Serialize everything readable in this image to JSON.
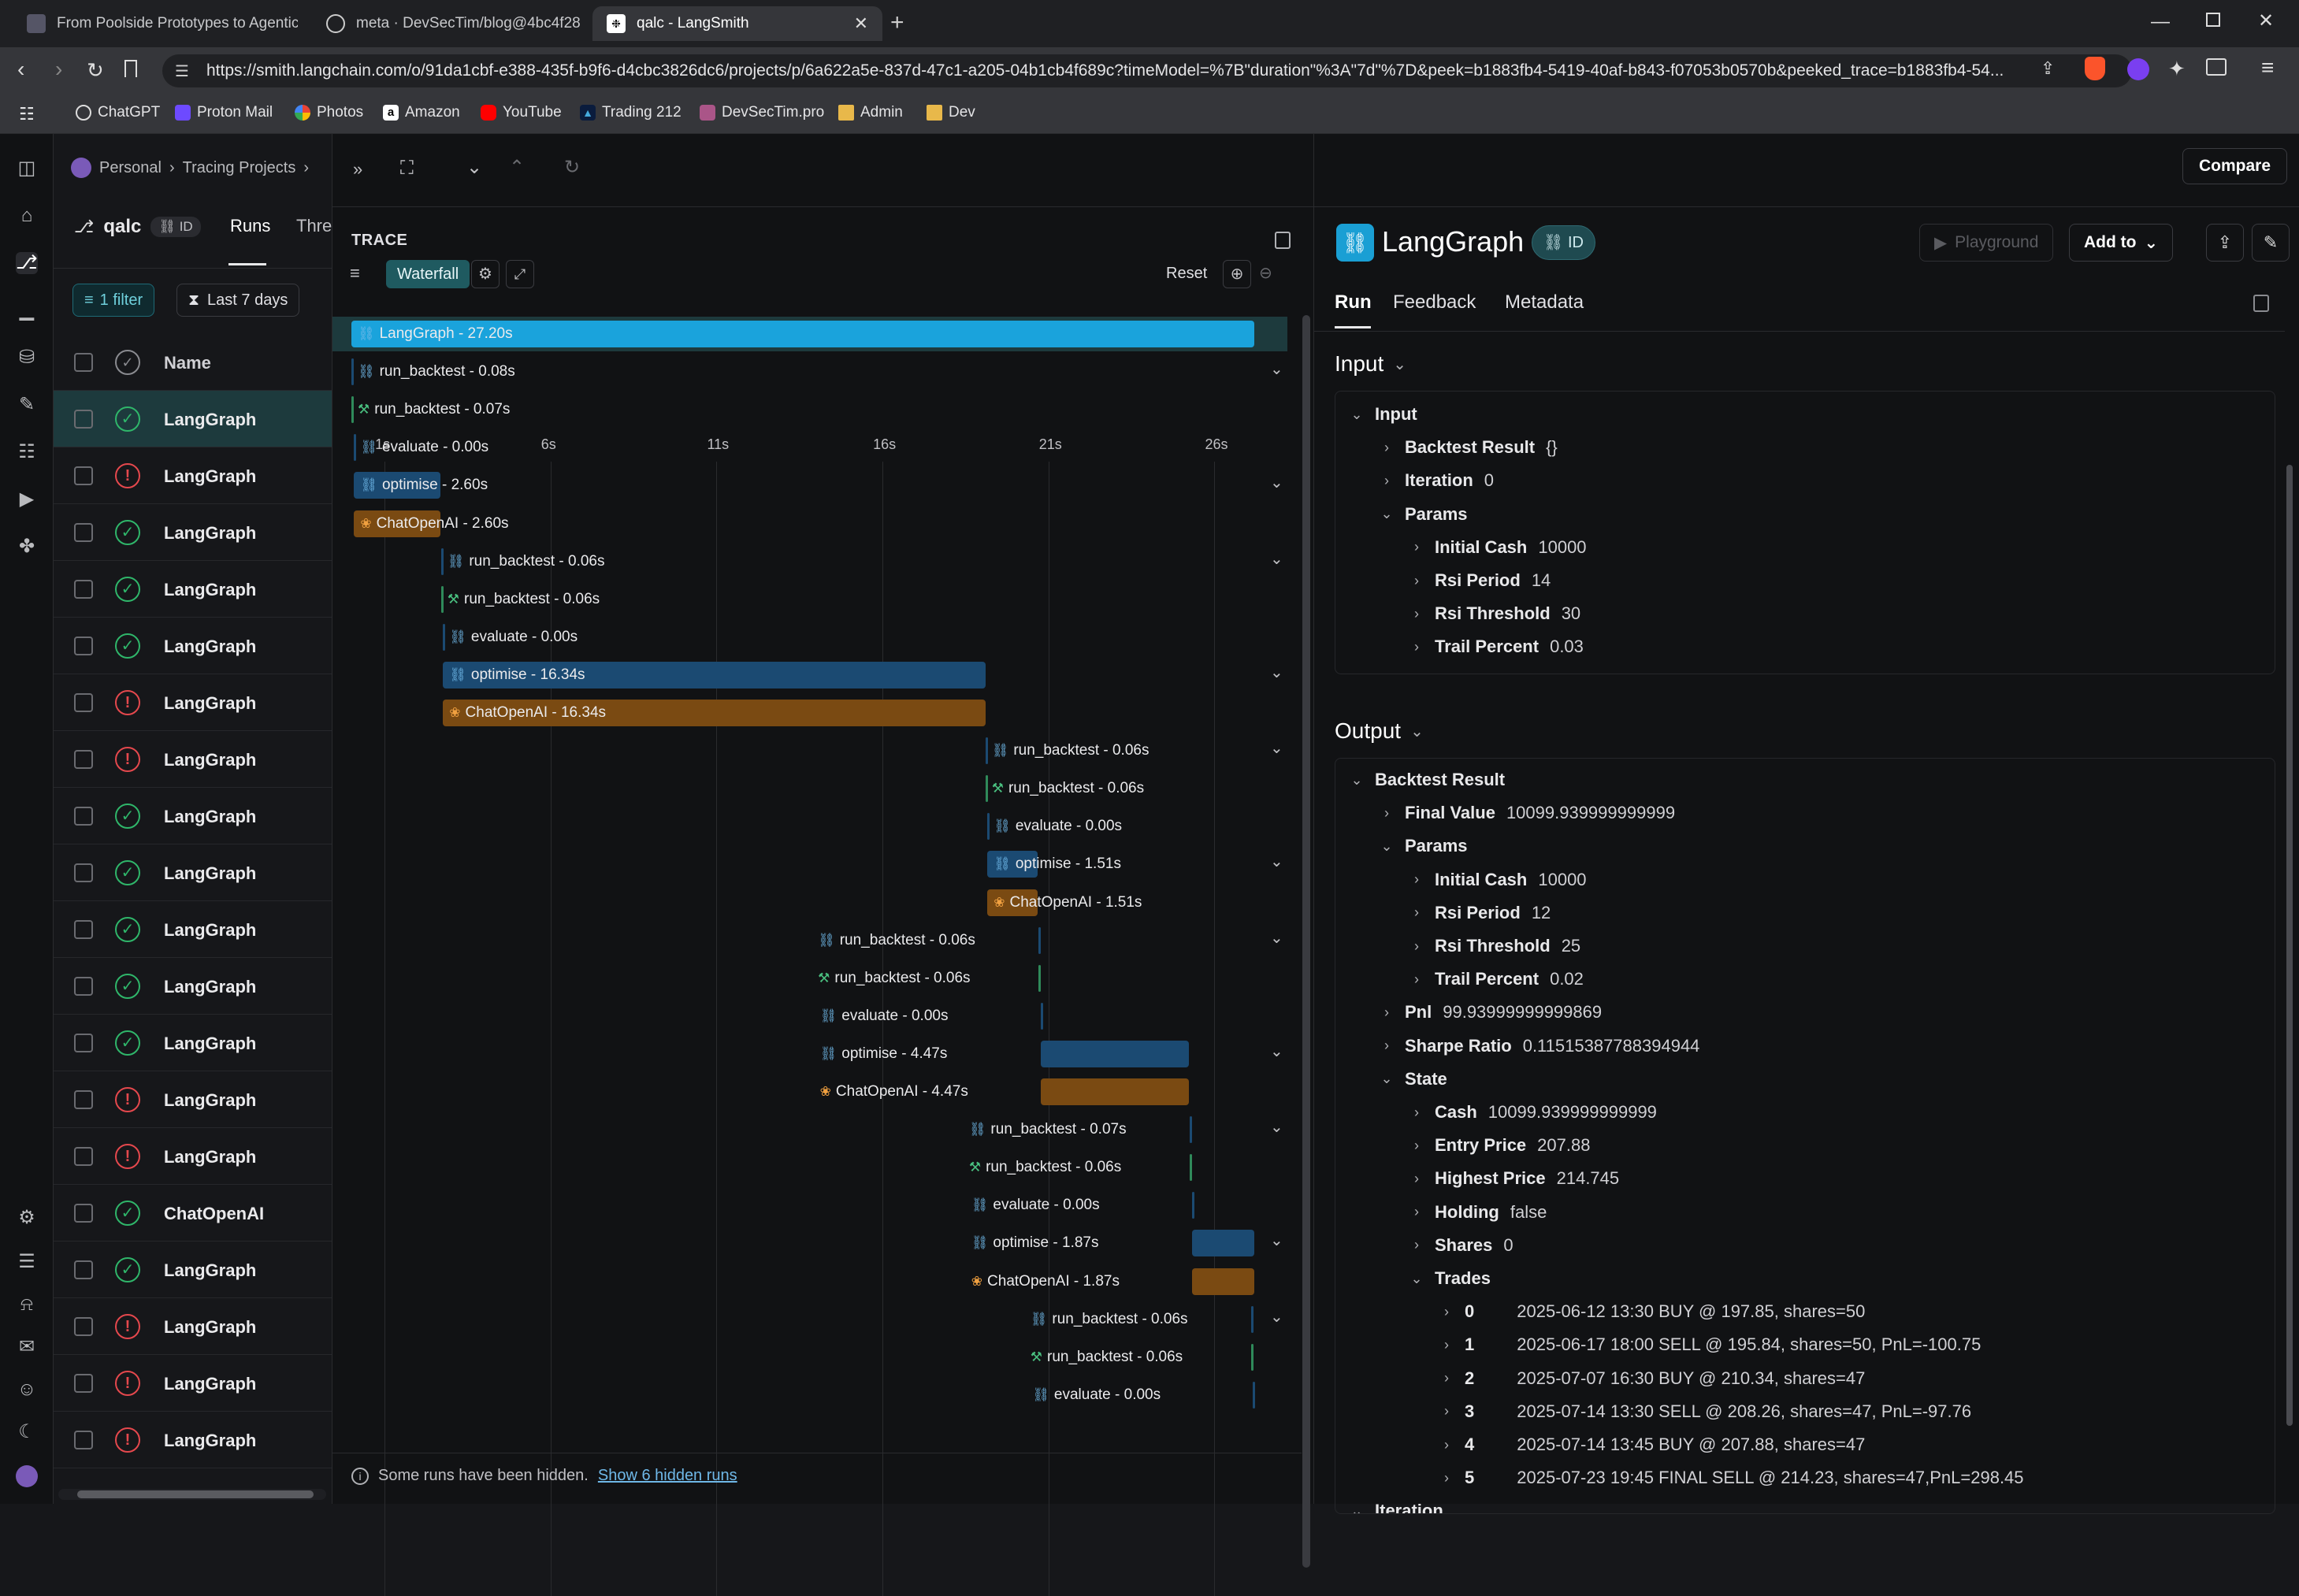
{
  "browser": {
    "tabs": [
      {
        "title": "From Poolside Prototypes to Agentic"
      },
      {
        "title": "meta · DevSecTim/blog@4bc4f28"
      },
      {
        "title": "qalc - LangSmith"
      }
    ],
    "url": "https://smith.langchain.com/o/91da1cbf-e388-435f-b9f6-d4cbc3826dc6/projects/p/6a622a5e-837d-47c1-a205-04b1cb4f689c?timeModel=%7B\"duration\"%3A\"7d\"%7D&peek=b1883fb4-5419-40af-b843-f07053b0570b&peeked_trace=b1883fb4-54...",
    "bookmarks": [
      "ChatGPT",
      "Proton Mail",
      "Photos",
      "Amazon",
      "YouTube",
      "Trading 212",
      "DevSecTim.pro",
      "Admin",
      "Dev"
    ]
  },
  "header": {
    "breadcrumb": [
      "Personal",
      "Tracing Projects"
    ],
    "compare_label": "Compare"
  },
  "project": {
    "name": "qalc",
    "id_badge": "ID",
    "tabs": [
      "Runs",
      "Threa"
    ],
    "filter_label": "1 filter",
    "time_label": "Last 7 days",
    "name_column": "Name",
    "runs": [
      {
        "name": "LangGraph",
        "status": "success"
      },
      {
        "name": "LangGraph",
        "status": "error"
      },
      {
        "name": "LangGraph",
        "status": "success"
      },
      {
        "name": "LangGraph",
        "status": "success"
      },
      {
        "name": "LangGraph",
        "status": "success"
      },
      {
        "name": "LangGraph",
        "status": "error"
      },
      {
        "name": "LangGraph",
        "status": "error"
      },
      {
        "name": "LangGraph",
        "status": "success"
      },
      {
        "name": "LangGraph",
        "status": "success"
      },
      {
        "name": "LangGraph",
        "status": "success"
      },
      {
        "name": "LangGraph",
        "status": "success"
      },
      {
        "name": "LangGraph",
        "status": "success"
      },
      {
        "name": "LangGraph",
        "status": "error"
      },
      {
        "name": "LangGraph",
        "status": "error"
      },
      {
        "name": "ChatOpenAI",
        "status": "success"
      },
      {
        "name": "LangGraph",
        "status": "success"
      },
      {
        "name": "LangGraph",
        "status": "error"
      },
      {
        "name": "LangGraph",
        "status": "error"
      },
      {
        "name": "LangGraph",
        "status": "error"
      }
    ]
  },
  "trace": {
    "heading": "TRACE",
    "waterfall_label": "Waterfall",
    "reset_label": "Reset",
    "axis_ticks": [
      "1s",
      "6s",
      "11s",
      "16s",
      "21s",
      "26s"
    ],
    "hidden_note": "Some runs have been hidden.",
    "hidden_link": "Show 6 hidden runs",
    "rows": [
      {
        "label": "LangGraph - 27.20s",
        "kind": "chain",
        "start": 0,
        "duration": 27.2,
        "expand": false
      },
      {
        "label": "run_backtest - 0.08s",
        "kind": "chain",
        "start": 0,
        "duration": 0.08,
        "expand": true
      },
      {
        "label": "run_backtest - 0.07s",
        "kind": "tool",
        "start": 0,
        "duration": 0.07,
        "expand": false
      },
      {
        "label": "evaluate - 0.00s",
        "kind": "chain",
        "start": 0.08,
        "duration": 0.0,
        "expand": false
      },
      {
        "label": "optimise - 2.60s",
        "kind": "chain",
        "start": 0.08,
        "duration": 2.6,
        "expand": true
      },
      {
        "label": "ChatOpenAI - 2.60s",
        "kind": "llm",
        "start": 0.08,
        "duration": 2.6,
        "expand": false
      },
      {
        "label": "run_backtest - 0.06s",
        "kind": "chain",
        "start": 2.7,
        "duration": 0.06,
        "expand": true
      },
      {
        "label": "run_backtest - 0.06s",
        "kind": "tool",
        "start": 2.7,
        "duration": 0.06,
        "expand": false
      },
      {
        "label": "evaluate - 0.00s",
        "kind": "chain",
        "start": 2.76,
        "duration": 0.0,
        "expand": false
      },
      {
        "label": "optimise - 16.34s",
        "kind": "chain",
        "start": 2.76,
        "duration": 16.34,
        "expand": true
      },
      {
        "label": "ChatOpenAI - 16.34s",
        "kind": "llm",
        "start": 2.76,
        "duration": 16.34,
        "expand": false
      },
      {
        "label": "run_backtest - 0.06s",
        "kind": "chain",
        "start": 19.1,
        "duration": 0.06,
        "expand": true
      },
      {
        "label": "run_backtest - 0.06s",
        "kind": "tool",
        "start": 19.1,
        "duration": 0.06,
        "expand": false
      },
      {
        "label": "evaluate - 0.00s",
        "kind": "chain",
        "start": 19.16,
        "duration": 0.0,
        "expand": false
      },
      {
        "label": "optimise - 1.51s",
        "kind": "chain",
        "start": 19.16,
        "duration": 1.51,
        "expand": true
      },
      {
        "label": "ChatOpenAI - 1.51s",
        "kind": "llm",
        "start": 19.16,
        "duration": 1.51,
        "expand": false
      },
      {
        "label": "run_backtest - 0.06s",
        "kind": "chain",
        "start": 20.7,
        "duration": 0.06,
        "expand": true
      },
      {
        "label": "run_backtest - 0.06s",
        "kind": "tool",
        "start": 20.7,
        "duration": 0.06,
        "expand": false
      },
      {
        "label": "evaluate - 0.00s",
        "kind": "chain",
        "start": 20.76,
        "duration": 0.0,
        "expand": false
      },
      {
        "label": "optimise - 4.47s",
        "kind": "chain",
        "start": 20.76,
        "duration": 4.47,
        "expand": true
      },
      {
        "label": "ChatOpenAI - 4.47s",
        "kind": "llm",
        "start": 20.76,
        "duration": 4.47,
        "expand": false
      },
      {
        "label": "run_backtest - 0.07s",
        "kind": "chain",
        "start": 25.25,
        "duration": 0.07,
        "expand": true
      },
      {
        "label": "run_backtest - 0.06s",
        "kind": "tool",
        "start": 25.25,
        "duration": 0.06,
        "expand": false
      },
      {
        "label": "evaluate - 0.00s",
        "kind": "chain",
        "start": 25.32,
        "duration": 0.0,
        "expand": false
      },
      {
        "label": "optimise - 1.87s",
        "kind": "chain",
        "start": 25.32,
        "duration": 1.87,
        "expand": true
      },
      {
        "label": "ChatOpenAI - 1.87s",
        "kind": "llm",
        "start": 25.32,
        "duration": 1.87,
        "expand": false
      },
      {
        "label": "run_backtest - 0.06s",
        "kind": "chain",
        "start": 27.1,
        "duration": 0.06,
        "expand": true
      },
      {
        "label": "run_backtest - 0.06s",
        "kind": "tool",
        "start": 27.1,
        "duration": 0.06,
        "expand": false
      },
      {
        "label": "evaluate - 0.00s",
        "kind": "chain",
        "start": 27.16,
        "duration": 0.0,
        "expand": false
      }
    ]
  },
  "detail": {
    "title": "LangGraph",
    "id_badge": "ID",
    "playground_label": "Playground",
    "addto_label": "Add to",
    "tabs": [
      "Run",
      "Feedback",
      "Metadata"
    ],
    "input_section": "Input",
    "output_section": "Output",
    "input_tree": [
      {
        "depth": 0,
        "key": "Input",
        "value": "",
        "open": true
      },
      {
        "depth": 1,
        "key": "Backtest Result",
        "value": "{}",
        "open": false
      },
      {
        "depth": 1,
        "key": "Iteration",
        "value": "0",
        "open": false
      },
      {
        "depth": 1,
        "key": "Params",
        "value": "",
        "open": true
      },
      {
        "depth": 2,
        "key": "Initial Cash",
        "value": "10000",
        "open": false
      },
      {
        "depth": 2,
        "key": "Rsi Period",
        "value": "14",
        "open": false
      },
      {
        "depth": 2,
        "key": "Rsi Threshold",
        "value": "30",
        "open": false
      },
      {
        "depth": 2,
        "key": "Trail Percent",
        "value": "0.03",
        "open": false
      }
    ],
    "output_tree": [
      {
        "depth": 0,
        "key": "Backtest Result",
        "value": "",
        "open": true
      },
      {
        "depth": 1,
        "key": "Final Value",
        "value": "10099.939999999999",
        "open": false
      },
      {
        "depth": 1,
        "key": "Params",
        "value": "",
        "open": true
      },
      {
        "depth": 2,
        "key": "Initial Cash",
        "value": "10000",
        "open": false
      },
      {
        "depth": 2,
        "key": "Rsi Period",
        "value": "12",
        "open": false
      },
      {
        "depth": 2,
        "key": "Rsi Threshold",
        "value": "25",
        "open": false
      },
      {
        "depth": 2,
        "key": "Trail Percent",
        "value": "0.02",
        "open": false
      },
      {
        "depth": 1,
        "key": "Pnl",
        "value": "99.93999999999869",
        "open": false
      },
      {
        "depth": 1,
        "key": "Sharpe Ratio",
        "value": "0.11515387788394944",
        "open": false
      },
      {
        "depth": 1,
        "key": "State",
        "value": "",
        "open": true
      },
      {
        "depth": 2,
        "key": "Cash",
        "value": "10099.939999999999",
        "open": false
      },
      {
        "depth": 2,
        "key": "Entry Price",
        "value": "207.88",
        "open": false
      },
      {
        "depth": 2,
        "key": "Highest Price",
        "value": "214.745",
        "open": false
      },
      {
        "depth": 2,
        "key": "Holding",
        "value": "false",
        "open": false
      },
      {
        "depth": 2,
        "key": "Shares",
        "value": "0",
        "open": false
      },
      {
        "depth": 2,
        "key": "Trades",
        "value": "",
        "open": true
      },
      {
        "depth": 3,
        "key": "0",
        "value": "2025-06-12 13:30 BUY @ 197.85, shares=50",
        "open": false
      },
      {
        "depth": 3,
        "key": "1",
        "value": "2025-06-17 18:00 SELL @ 195.84, shares=50, PnL=-100.75",
        "open": false
      },
      {
        "depth": 3,
        "key": "2",
        "value": "2025-07-07 16:30 BUY @ 210.34, shares=47",
        "open": false
      },
      {
        "depth": 3,
        "key": "3",
        "value": "2025-07-14 13:30 SELL @ 208.26, shares=47, PnL=-97.76",
        "open": false
      },
      {
        "depth": 3,
        "key": "4",
        "value": "2025-07-14 13:45 BUY @ 207.88, shares=47",
        "open": false
      },
      {
        "depth": 3,
        "key": "5",
        "value": "2025-07-23 19:45 FINAL SELL @ 214.23, shares=47,PnL=298.45",
        "open": false
      },
      {
        "depth": 0,
        "key": "Iteration",
        "value": "",
        "open": true
      }
    ]
  },
  "colors": {
    "chain_bar": "#1b4a72",
    "root_bar": "#1aa3dc",
    "llm_bar": "#7a4a12",
    "tool_line": "#2f8a5a",
    "accent": "#4bb3c4"
  }
}
